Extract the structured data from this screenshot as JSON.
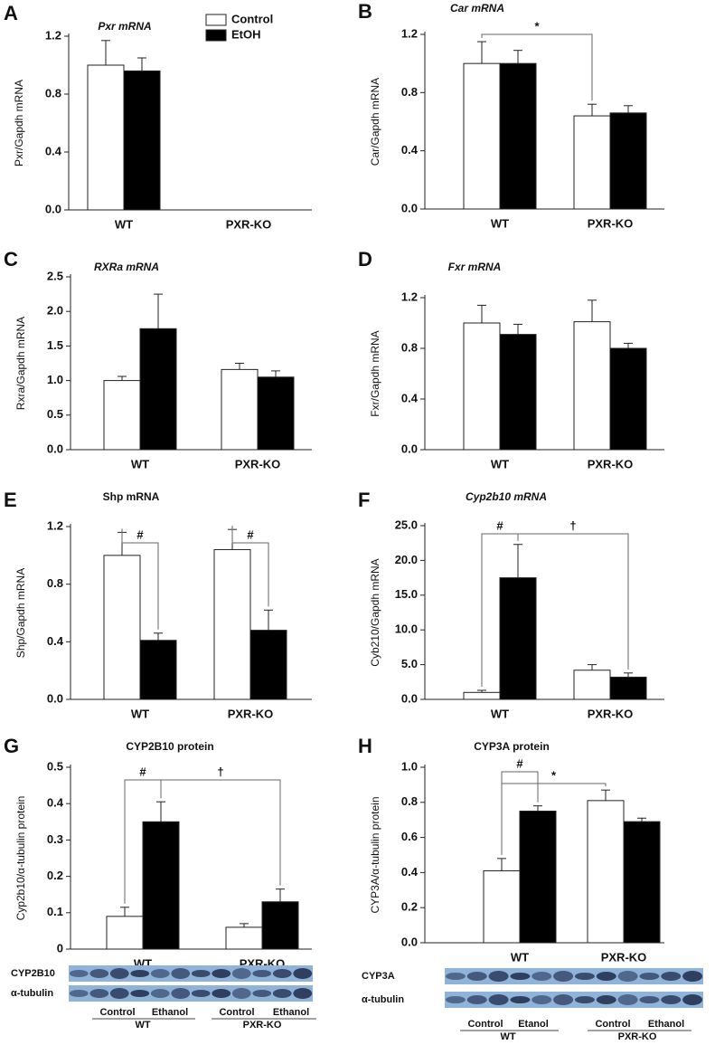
{
  "chart_data": [
    {
      "type": "bar",
      "panel": "A",
      "title": "Pxr mRNA",
      "title_italic": true,
      "ylabel": "Pxr/Gapdh mRNA",
      "legend": true,
      "categories": [
        "WT",
        "PXR-KO"
      ],
      "series": [
        {
          "name": "Control",
          "color": "#ffffff",
          "values": [
            1.0,
            null
          ],
          "errors": [
            0.17,
            null
          ]
        },
        {
          "name": "EtOH",
          "color": "#000000",
          "values": [
            0.96,
            null
          ],
          "errors": [
            0.09,
            null
          ]
        }
      ],
      "ylim": [
        0,
        1.2
      ],
      "yticks": [
        {
          "value": 0,
          "label": "0.0"
        },
        0.4,
        0.8,
        1.2
      ]
    },
    {
      "type": "bar",
      "panel": "B",
      "title": "Car mRNA",
      "title_italic": true,
      "ylabel": "Car/Gapdh mRNA",
      "legend": false,
      "categories": [
        "WT",
        "PXR-KO"
      ],
      "series": [
        {
          "color": "#ffffff",
          "values": [
            1.0,
            0.64
          ],
          "errors": [
            0.15,
            0.08
          ]
        },
        {
          "color": "#000000",
          "values": [
            1.0,
            0.66
          ],
          "errors": [
            0.09,
            0.05
          ]
        }
      ],
      "ylim": [
        0,
        1.2
      ],
      "yticks": [
        {
          "value": 0,
          "label": "0.0"
        },
        0.4,
        0.8,
        1.2
      ],
      "annotations": [
        "*"
      ]
    },
    {
      "type": "bar",
      "panel": "C",
      "title": "RXRa mRNA",
      "title_italic": true,
      "ylabel": "Rxra/Gapdh mRNA",
      "legend": false,
      "categories": [
        "WT",
        "PXR-KO"
      ],
      "series": [
        {
          "color": "#ffffff",
          "values": [
            1.0,
            1.16
          ],
          "errors": [
            0.06,
            0.09
          ]
        },
        {
          "color": "#000000",
          "values": [
            1.75,
            1.05
          ],
          "errors": [
            0.5,
            0.09
          ]
        }
      ],
      "ylim": [
        0,
        2.5
      ],
      "yticks": [
        {
          "value": 0,
          "label": "0.0"
        },
        0.5,
        {
          "value": 1,
          "label": "1.0"
        },
        1.5,
        {
          "value": 2,
          "label": "2.0"
        },
        2.5
      ]
    },
    {
      "type": "bar",
      "panel": "D",
      "title": "Fxr mRNA",
      "title_italic": true,
      "ylabel": "Fxr/Gapdh mRNA",
      "legend": false,
      "categories": [
        "WT",
        "PXR-KO"
      ],
      "series": [
        {
          "color": "#ffffff",
          "values": [
            1.0,
            1.01
          ],
          "errors": [
            0.14,
            0.17
          ]
        },
        {
          "color": "#000000",
          "values": [
            0.91,
            0.8
          ],
          "errors": [
            0.08,
            0.04
          ]
        }
      ],
      "ylim": [
        0,
        1.2
      ],
      "yticks": [
        {
          "value": 0,
          "label": "0.0"
        },
        0.4,
        0.8,
        1.2
      ]
    },
    {
      "type": "bar",
      "panel": "E",
      "title": "Shp mRNA",
      "title_italic": false,
      "ylabel": "Shp/Gapdh mRNA",
      "legend": false,
      "categories": [
        "WT",
        "PXR-KO"
      ],
      "series": [
        {
          "color": "#ffffff",
          "values": [
            1.0,
            1.04
          ],
          "errors": [
            0.16,
            0.14
          ]
        },
        {
          "color": "#000000",
          "values": [
            0.41,
            0.48
          ],
          "errors": [
            0.05,
            0.14
          ]
        }
      ],
      "ylim": [
        0,
        1.2
      ],
      "yticks": [
        {
          "value": 0,
          "label": "0.0"
        },
        0.4,
        0.8,
        1.2
      ],
      "annotations": [
        "#",
        "#"
      ]
    },
    {
      "type": "bar",
      "panel": "F",
      "title": "Cyp2b10 mRNA",
      "title_italic": true,
      "ylabel": "Cyb210/Gapdh mRNA",
      "legend": false,
      "categories": [
        "WT",
        "PXR-KO"
      ],
      "series": [
        {
          "color": "#ffffff",
          "values": [
            1.0,
            4.2
          ],
          "errors": [
            0.3,
            0.8
          ]
        },
        {
          "color": "#000000",
          "values": [
            17.5,
            3.2
          ],
          "errors": [
            4.8,
            0.6
          ]
        }
      ],
      "ylim": [
        0,
        25
      ],
      "yticks": [
        {
          "value": 0,
          "label": "0.0"
        },
        {
          "value": 5,
          "label": "5.0"
        },
        {
          "value": 10,
          "label": "10.0"
        },
        {
          "value": 15,
          "label": "15.0"
        },
        {
          "value": 20,
          "label": "20.0"
        },
        {
          "value": 25,
          "label": "25.0"
        }
      ],
      "annotations": [
        "#",
        "†"
      ]
    },
    {
      "type": "bar",
      "panel": "G",
      "title": "CYP2B10 protein",
      "title_italic": false,
      "ylabel": "Cyp2b10/α-tubulin protein",
      "legend": false,
      "categories": [
        "WT",
        "PXR-KO"
      ],
      "series": [
        {
          "color": "#ffffff",
          "values": [
            0.09,
            0.06
          ],
          "errors": [
            0.025,
            0.01
          ]
        },
        {
          "color": "#000000",
          "values": [
            0.35,
            0.13
          ],
          "errors": [
            0.055,
            0.035
          ]
        }
      ],
      "ylim": [
        0,
        0.5
      ],
      "yticks": [
        0,
        0.1,
        0.2,
        0.3,
        0.4,
        0.5
      ],
      "annotations": [
        "#",
        "†"
      ],
      "blot": {
        "bands": [
          "CYP2B10",
          "α-tubulin"
        ],
        "groups": [
          {
            "name": "WT",
            "conditions": [
              "Control",
              "Ethanol"
            ]
          },
          {
            "name": "PXR-KO",
            "conditions": [
              "Control",
              "Ethanol"
            ]
          }
        ]
      }
    },
    {
      "type": "bar",
      "panel": "H",
      "title": "CYP3A protein",
      "title_italic": false,
      "ylabel": "CYP3A/α-tubulin protein",
      "legend": false,
      "categories": [
        "WT",
        "PXR-KO"
      ],
      "series": [
        {
          "color": "#ffffff",
          "values": [
            0.41,
            0.81
          ],
          "errors": [
            0.07,
            0.06
          ]
        },
        {
          "color": "#000000",
          "values": [
            0.75,
            0.69
          ],
          "errors": [
            0.03,
            0.02
          ]
        }
      ],
      "ylim": [
        0,
        1.0
      ],
      "yticks": [
        {
          "value": 0,
          "label": "0.0"
        },
        0.2,
        0.4,
        0.6,
        0.8,
        {
          "value": 1,
          "label": "1.0"
        }
      ],
      "annotations": [
        "#",
        "*"
      ],
      "blot": {
        "bands": [
          "CYP3A",
          "α-tubulin"
        ],
        "groups": [
          {
            "name": "WT",
            "conditions": [
              "Control",
              "Etanol"
            ]
          },
          {
            "name": "PXR-KO",
            "conditions": [
              "Control",
              "Ethanol"
            ]
          }
        ]
      }
    }
  ]
}
